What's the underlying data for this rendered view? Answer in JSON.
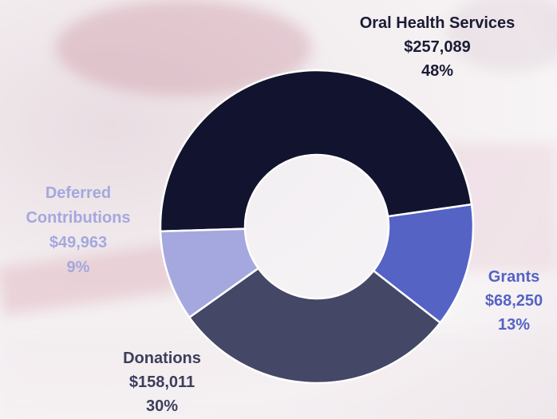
{
  "chart_data": {
    "type": "donut",
    "categories": [
      "Oral Health Services",
      "Grants",
      "Donations",
      "Deferred Contributions"
    ],
    "values": [
      257089,
      68250,
      158011,
      49963
    ],
    "value_labels": [
      "$257,089",
      "$68,250",
      "$158,011",
      "$49,963"
    ],
    "shares": [
      48,
      13,
      30,
      9
    ],
    "share_labels": [
      "48%",
      "13%",
      "30%",
      "9%"
    ],
    "colors": [
      "#12142f",
      "#5563c5",
      "#454766",
      "#a4a8de"
    ]
  }
}
